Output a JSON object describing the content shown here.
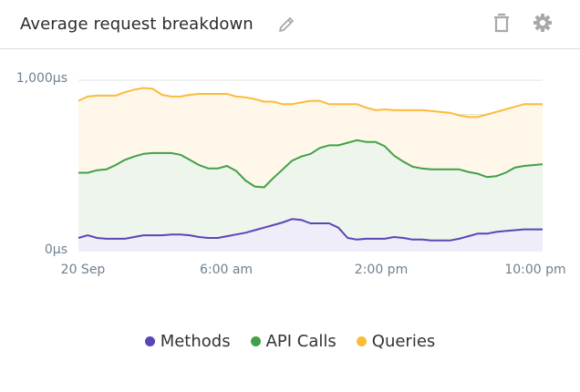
{
  "widget": {
    "title": "Average request breakdown",
    "icons": {
      "edit": "pencil-icon",
      "delete": "trash-icon",
      "settings": "gear-icon"
    }
  },
  "colors": {
    "methods": "#5b45b6",
    "api_calls": "#43a047",
    "queries": "#fbbb3a",
    "methods_fill": "#efedf9",
    "api_calls_fill": "#edf5ec",
    "queries_fill": "#fef7ea",
    "grid": "#ece6dc",
    "axis_text": "#6f8191"
  },
  "axes": {
    "y_labels": [
      "1,000μs",
      "0μs"
    ],
    "x_labels": [
      "20 Sep",
      "6:00 am",
      "2:00 pm",
      "10:00 pm"
    ]
  },
  "legend": [
    {
      "label": "Methods",
      "key": "methods"
    },
    {
      "label": "API Calls",
      "key": "api_calls"
    },
    {
      "label": "Queries",
      "key": "queries"
    }
  ],
  "chart_data": {
    "type": "area",
    "title": "Average request breakdown",
    "xlabel": "",
    "ylabel": "",
    "ylim": [
      0,
      1000
    ],
    "y_ticks": [
      0,
      200,
      400,
      600,
      800,
      1000
    ],
    "y_tick_labels_shown": [
      "0μs",
      "1,000μs"
    ],
    "x_tick_labels": [
      "20 Sep",
      "6:00 am",
      "2:00 pm",
      "10:00 pm"
    ],
    "grid": true,
    "legend_position": "bottom",
    "x": [
      0,
      1,
      2,
      3,
      4,
      5,
      6,
      7,
      8,
      9,
      10,
      11,
      12,
      13,
      14,
      15,
      16,
      17,
      18,
      19,
      20,
      21,
      22,
      23,
      24,
      25,
      26,
      27,
      28,
      29,
      30,
      31,
      32,
      33,
      34,
      35,
      36,
      37,
      38,
      39,
      40,
      41,
      42,
      43,
      44,
      45,
      46,
      47,
      48,
      49,
      50
    ],
    "series": [
      {
        "name": "Methods",
        "values": [
          80,
          95,
          80,
          75,
          75,
          75,
          85,
          95,
          95,
          95,
          100,
          100,
          95,
          85,
          80,
          80,
          90,
          100,
          110,
          125,
          140,
          155,
          170,
          190,
          185,
          165,
          165,
          165,
          140,
          80,
          70,
          75,
          75,
          75,
          85,
          80,
          70,
          70,
          65,
          65,
          65,
          75,
          90,
          105,
          105,
          115,
          120,
          125,
          130,
          130,
          130
        ]
      },
      {
        "name": "API Calls",
        "values": [
          460,
          460,
          475,
          480,
          505,
          535,
          555,
          570,
          575,
          575,
          575,
          565,
          535,
          505,
          485,
          485,
          500,
          470,
          415,
          380,
          375,
          430,
          480,
          530,
          555,
          570,
          605,
          620,
          620,
          635,
          650,
          640,
          640,
          615,
          560,
          525,
          495,
          485,
          480,
          480,
          480,
          480,
          465,
          455,
          435,
          440,
          460,
          490,
          500,
          505,
          510
        ]
      },
      {
        "name": "Queries",
        "values": [
          880,
          905,
          910,
          910,
          910,
          930,
          945,
          955,
          950,
          915,
          905,
          905,
          915,
          920,
          920,
          920,
          920,
          905,
          900,
          890,
          875,
          875,
          860,
          860,
          870,
          880,
          880,
          860,
          860,
          860,
          860,
          840,
          825,
          830,
          825,
          825,
          825,
          825,
          820,
          815,
          810,
          795,
          785,
          785,
          800,
          815,
          830,
          845,
          860,
          860,
          860
        ]
      }
    ],
    "stacking": "overlapping (each series filled from 0)"
  }
}
